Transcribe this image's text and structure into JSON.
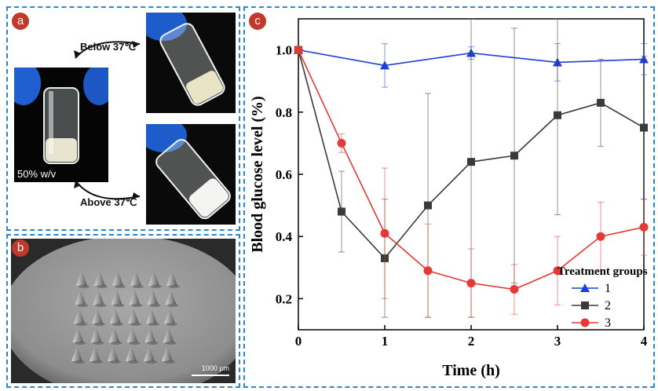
{
  "panels": {
    "a": {
      "label": "a",
      "below_caption": "Below 37℃",
      "above_caption": "Above 37℃",
      "concentration": "50% w/v"
    },
    "b": {
      "label": "b",
      "scalebar": "1000 µm"
    },
    "c": {
      "label": "c"
    }
  },
  "colors": {
    "panel_border": "#2e86c9",
    "badge_fill": "#c0392b",
    "series_1": "#1f3fd6",
    "series_2": "#3a3a3a",
    "series_3": "#e53935"
  },
  "chart_data": {
    "type": "line",
    "xlabel": "Time (h)",
    "ylabel": "Blood glucose level (%)",
    "xlim": [
      0,
      4
    ],
    "ylim": [
      0.1,
      1.1
    ],
    "xticks": [
      0,
      1,
      2,
      3,
      4
    ],
    "yticks": [
      0.2,
      0.4,
      0.6,
      0.8,
      1.0
    ],
    "xtick_labels": [
      "0",
      "1",
      "2",
      "3",
      "4"
    ],
    "ytick_labels": [
      "0.2",
      "0.4",
      "0.6",
      "0.8",
      "1.0"
    ],
    "legend_title": "Treatment groups",
    "legend_position": "bottom-right",
    "series": [
      {
        "name": "1",
        "marker": "triangle",
        "color": "#1f3fd6",
        "x": [
          0,
          1,
          2,
          3,
          4
        ],
        "y": [
          1.0,
          0.95,
          0.99,
          0.96,
          0.97
        ],
        "err": [
          0.0,
          0.07,
          0.02,
          0.06,
          0.05
        ]
      },
      {
        "name": "2",
        "marker": "square",
        "color": "#3a3a3a",
        "x": [
          0,
          0.5,
          1,
          1.5,
          2,
          2.5,
          3,
          3.5,
          4
        ],
        "y": [
          1.0,
          0.48,
          0.33,
          0.5,
          0.64,
          0.66,
          0.79,
          0.83,
          0.75
        ],
        "err": [
          0.0,
          0.13,
          0.19,
          0.36,
          0.5,
          0.41,
          0.32,
          0.14,
          0.23
        ]
      },
      {
        "name": "3",
        "marker": "circle",
        "color": "#e53935",
        "x": [
          0,
          0.5,
          1,
          1.5,
          2,
          2.5,
          3,
          3.5,
          4
        ],
        "y": [
          1.0,
          0.7,
          0.41,
          0.29,
          0.25,
          0.23,
          0.29,
          0.4,
          0.43
        ],
        "err": [
          0.0,
          0.03,
          0.21,
          0.15,
          0.11,
          0.08,
          0.11,
          0.11,
          0.09
        ]
      }
    ]
  }
}
